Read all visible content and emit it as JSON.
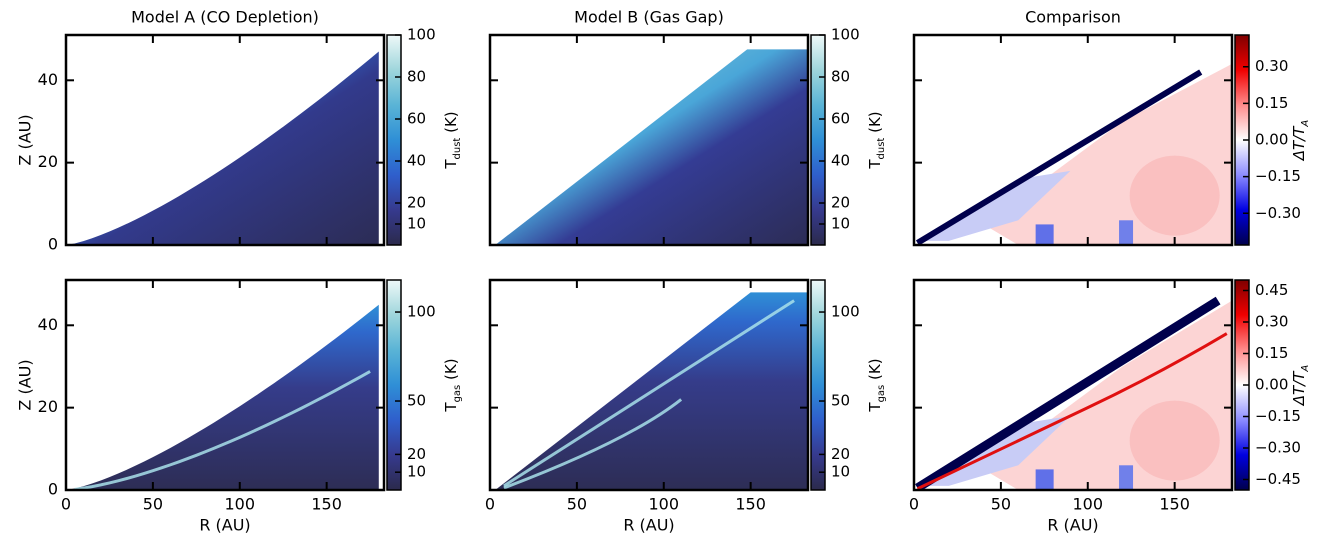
{
  "chart_data": [
    {
      "type": "heatmap",
      "title": "Model A (CO Depletion)",
      "ylabel": "Z (AU)",
      "xlim": [
        0,
        183
      ],
      "ylim": [
        0,
        51
      ],
      "xticks": [
        0,
        50,
        100,
        150
      ],
      "yticks": [
        0,
        20,
        40
      ],
      "show_xticklabels": false,
      "show_yticklabels": true,
      "colorbar": {
        "label": [
          "T",
          "dust",
          " (K)"
        ],
        "lim": [
          0,
          100
        ],
        "ticks": [
          10,
          20,
          40,
          60,
          80,
          100
        ],
        "colors": [
          "#2b2a4c",
          "#363a8e",
          "#2f5fcc",
          "#2f8fd6",
          "#5ab4d6",
          "#9fd6dc",
          "#eef8f8"
        ]
      }
    },
    {
      "type": "heatmap",
      "title": "Model B (Gas Gap)",
      "xlim": [
        0,
        183
      ],
      "ylim": [
        0,
        51
      ],
      "xticks": [
        0,
        50,
        100,
        150
      ],
      "yticks": [
        0,
        20,
        40
      ],
      "show_xticklabels": false,
      "show_yticklabels": false,
      "colorbar": {
        "label": [
          "T",
          "dust",
          " (K)"
        ],
        "lim": [
          0,
          100
        ],
        "ticks": [
          10,
          20,
          40,
          60,
          80,
          100
        ],
        "colors": [
          "#2b2a4c",
          "#363a8e",
          "#2f5fcc",
          "#2f8fd6",
          "#5ab4d6",
          "#9fd6dc",
          "#eef8f8"
        ]
      }
    },
    {
      "type": "heatmap",
      "title": "Comparison",
      "xlim": [
        0,
        183
      ],
      "ylim": [
        0,
        51
      ],
      "xticks": [
        0,
        50,
        100,
        150
      ],
      "yticks": [
        0,
        20,
        40
      ],
      "show_xticklabels": false,
      "show_yticklabels": false,
      "colorbar": {
        "label": [
          "ΔT/T",
          "A"
        ],
        "lim": [
          -0.43,
          0.43
        ],
        "ticks": [
          {
            "value": -0.3,
            "label": "−0.30"
          },
          {
            "value": -0.15,
            "label": "−0.15"
          },
          {
            "value": 0,
            "label": "0.00"
          },
          {
            "value": 0.15,
            "label": "0.15"
          },
          {
            "value": 0.3,
            "label": "0.30"
          }
        ],
        "colors": [
          "#00004c",
          "#0000e0",
          "#8c8cff",
          "#ffffff",
          "#ff8c8c",
          "#f00000",
          "#800000"
        ]
      }
    },
    {
      "type": "heatmap",
      "xlabel": "R (AU)",
      "ylabel": "Z (AU)",
      "xlim": [
        0,
        183
      ],
      "ylim": [
        0,
        51
      ],
      "xticks": [
        0,
        50,
        100,
        150
      ],
      "yticks": [
        0,
        20,
        40
      ],
      "show_xticklabels": true,
      "show_yticklabels": true,
      "colorbar": {
        "label": [
          "T",
          "gas",
          " (K)"
        ],
        "lim": [
          0,
          118
        ],
        "ticks": [
          10,
          20,
          50,
          100
        ],
        "colors": [
          "#2b2a4c",
          "#363a8e",
          "#2f5fcc",
          "#2f8fd6",
          "#5ab4d6",
          "#9fd6dc",
          "#eef8f8"
        ]
      }
    },
    {
      "type": "heatmap",
      "xlabel": "R (AU)",
      "xlim": [
        0,
        183
      ],
      "ylim": [
        0,
        51
      ],
      "xticks": [
        0,
        50,
        100,
        150
      ],
      "yticks": [
        0,
        20,
        40
      ],
      "show_xticklabels": true,
      "show_yticklabels": false,
      "colorbar": {
        "label": [
          "T",
          "gas",
          " (K)"
        ],
        "lim": [
          0,
          118
        ],
        "ticks": [
          10,
          20,
          50,
          100
        ],
        "colors": [
          "#2b2a4c",
          "#363a8e",
          "#2f5fcc",
          "#2f8fd6",
          "#5ab4d6",
          "#9fd6dc",
          "#eef8f8"
        ]
      }
    },
    {
      "type": "heatmap",
      "xlabel": "R (AU)",
      "xlim": [
        0,
        183
      ],
      "ylim": [
        0,
        51
      ],
      "xticks": [
        0,
        50,
        100,
        150
      ],
      "yticks": [
        0,
        20,
        40
      ],
      "show_xticklabels": true,
      "show_yticklabels": false,
      "colorbar": {
        "label": [
          "ΔT/T",
          "A"
        ],
        "lim": [
          -0.5,
          0.5
        ],
        "ticks": [
          {
            "value": -0.45,
            "label": "−0.45"
          },
          {
            "value": -0.3,
            "label": "−0.30"
          },
          {
            "value": -0.15,
            "label": "−0.15"
          },
          {
            "value": 0,
            "label": "0.00"
          },
          {
            "value": 0.15,
            "label": "0.15"
          },
          {
            "value": 0.3,
            "label": "0.30"
          },
          {
            "value": 0.45,
            "label": "0.45"
          }
        ],
        "colors": [
          "#00004c",
          "#0000e0",
          "#8c8cff",
          "#ffffff",
          "#ff8c8c",
          "#f00000",
          "#800000"
        ]
      }
    }
  ]
}
